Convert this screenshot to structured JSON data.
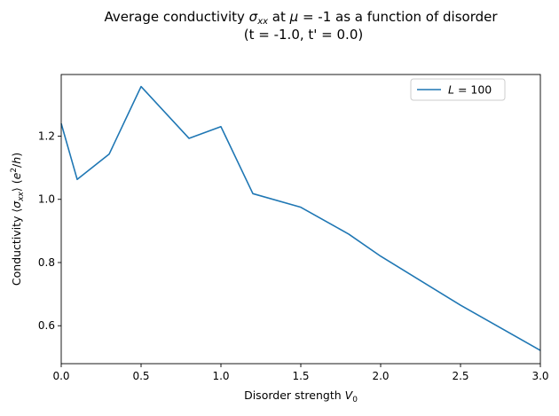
{
  "chart_data": {
    "type": "line",
    "title_line1": "Average conductivity σ_xx at μ = -1 as a function of disorder",
    "title_line2": "(t = -1.0, t' =  0.0)",
    "xlabel": "Disorder strength V_0",
    "ylabel": "Conductivity ⟨σ_xx⟩ (e²/h)",
    "xlim": [
      0.0,
      3.0
    ],
    "ylim": [
      0.48,
      1.395
    ],
    "x_ticks": [
      0.0,
      0.5,
      1.0,
      1.5,
      2.0,
      2.5,
      3.0
    ],
    "x_tick_labels": [
      "0.0",
      "0.5",
      "1.0",
      "1.5",
      "2.0",
      "2.5",
      "3.0"
    ],
    "y_ticks": [
      0.6,
      0.8,
      1.0,
      1.2
    ],
    "y_tick_labels": [
      "0.6",
      "0.8",
      "1.0",
      "1.2"
    ],
    "grid": false,
    "legend_position": "top-right",
    "series": [
      {
        "name": "L = 100",
        "color": "#1f77b4",
        "x": [
          0.0,
          0.1,
          0.3,
          0.5,
          0.8,
          1.0,
          1.2,
          1.5,
          1.8,
          2.0,
          2.5,
          3.0
        ],
        "y": [
          1.24,
          1.063,
          1.143,
          1.357,
          1.193,
          1.23,
          1.018,
          0.975,
          0.89,
          0.82,
          0.665,
          0.522
        ]
      }
    ]
  }
}
